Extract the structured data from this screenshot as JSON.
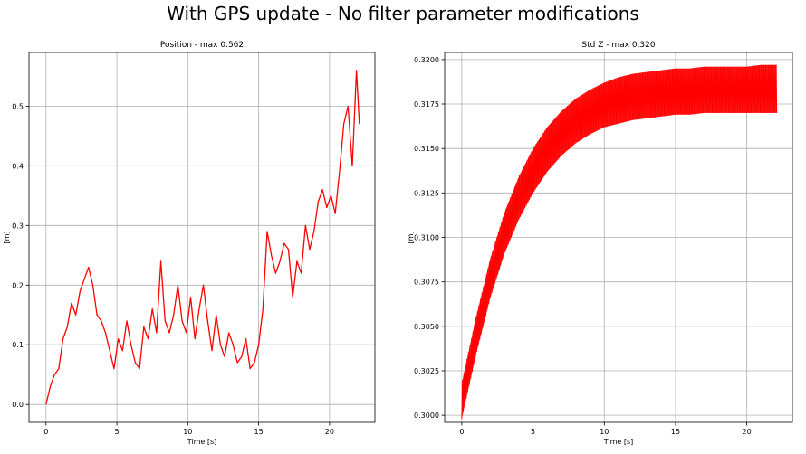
{
  "figure": {
    "suptitle": "With GPS update - No filter parameter modifications"
  },
  "chart_data": [
    {
      "type": "line",
      "title": "Position - max 0.562",
      "xlabel": "Time [s]",
      "ylabel": "[m]",
      "xlim": [
        -1.2,
        23.2
      ],
      "ylim": [
        -0.03,
        0.59
      ],
      "xticks": [
        0,
        5,
        10,
        15,
        20
      ],
      "yticks": [
        0.0,
        0.1,
        0.2,
        0.3,
        0.4,
        0.5
      ],
      "ytick_labels": [
        "0.0",
        "0.1",
        "0.2",
        "0.3",
        "0.4",
        "0.5"
      ],
      "grid": true,
      "color": "#ff0000",
      "series": [
        {
          "x": [
            0,
            0.3,
            0.6,
            0.9,
            1.2,
            1.5,
            1.8,
            2.1,
            2.4,
            2.7,
            3.0,
            3.3,
            3.6,
            3.9,
            4.2,
            4.5,
            4.8,
            5.1,
            5.4,
            5.7,
            6.0,
            6.3,
            6.6,
            6.9,
            7.2,
            7.5,
            7.8,
            8.1,
            8.4,
            8.7,
            9.0,
            9.3,
            9.6,
            9.9,
            10.2,
            10.5,
            10.8,
            11.1,
            11.4,
            11.7,
            12.0,
            12.3,
            12.6,
            12.9,
            13.2,
            13.5,
            13.8,
            14.1,
            14.4,
            14.7,
            15.0,
            15.3,
            15.6,
            15.9,
            16.2,
            16.5,
            16.8,
            17.1,
            17.4,
            17.7,
            18.0,
            18.3,
            18.6,
            18.9,
            19.2,
            19.5,
            19.8,
            20.1,
            20.4,
            20.7,
            21.0,
            21.3,
            21.6,
            21.9,
            22.1
          ],
          "y": [
            0.0,
            0.03,
            0.05,
            0.06,
            0.11,
            0.13,
            0.17,
            0.15,
            0.19,
            0.21,
            0.23,
            0.2,
            0.15,
            0.14,
            0.12,
            0.09,
            0.06,
            0.11,
            0.09,
            0.14,
            0.1,
            0.07,
            0.06,
            0.13,
            0.11,
            0.16,
            0.12,
            0.24,
            0.14,
            0.12,
            0.15,
            0.2,
            0.14,
            0.12,
            0.18,
            0.11,
            0.16,
            0.2,
            0.14,
            0.09,
            0.15,
            0.1,
            0.08,
            0.12,
            0.1,
            0.07,
            0.08,
            0.11,
            0.06,
            0.07,
            0.1,
            0.16,
            0.29,
            0.25,
            0.22,
            0.24,
            0.27,
            0.26,
            0.18,
            0.24,
            0.22,
            0.3,
            0.26,
            0.29,
            0.34,
            0.36,
            0.33,
            0.35,
            0.32,
            0.39,
            0.47,
            0.5,
            0.4,
            0.56,
            0.47
          ]
        }
      ]
    },
    {
      "type": "line",
      "title": "Std Z - max 0.320",
      "xlabel": "Time [s]",
      "ylabel": "[m]",
      "xlim": [
        -1.2,
        23.2
      ],
      "ylim": [
        0.2996,
        0.3204
      ],
      "xticks": [
        0,
        5,
        10,
        15,
        20
      ],
      "yticks": [
        0.3,
        0.3025,
        0.305,
        0.3075,
        0.31,
        0.3125,
        0.315,
        0.3175,
        0.32
      ],
      "ytick_labels": [
        "0.3000",
        "0.3025",
        "0.3050",
        "0.3075",
        "0.3100",
        "0.3125",
        "0.3150",
        "0.3175",
        "0.3200"
      ],
      "grid": true,
      "color": "#ff0000",
      "band": {
        "x": [
          0,
          1,
          2,
          3,
          4,
          5,
          6,
          7,
          8,
          9,
          10,
          11,
          12,
          13,
          14,
          15,
          16,
          17,
          18,
          19,
          20,
          21,
          22.1
        ],
        "upper": [
          0.3018,
          0.3055,
          0.3088,
          0.3114,
          0.3134,
          0.315,
          0.3162,
          0.3171,
          0.3178,
          0.3183,
          0.3187,
          0.319,
          0.3192,
          0.3193,
          0.3194,
          0.3195,
          0.3195,
          0.3196,
          0.3196,
          0.3196,
          0.3196,
          0.3197,
          0.3197
        ],
        "lower": [
          0.2998,
          0.3034,
          0.3066,
          0.3091,
          0.311,
          0.3125,
          0.3137,
          0.3146,
          0.3153,
          0.3158,
          0.3162,
          0.3164,
          0.3166,
          0.3167,
          0.3168,
          0.3169,
          0.3169,
          0.317,
          0.317,
          0.317,
          0.317,
          0.317,
          0.317
        ]
      }
    }
  ]
}
